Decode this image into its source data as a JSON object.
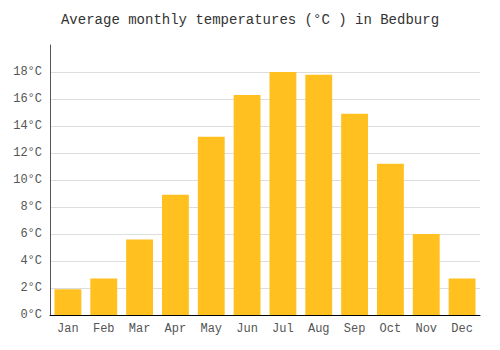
{
  "chart_data": {
    "type": "bar",
    "title": "Average monthly temperatures (°C ) in Bedburg",
    "categories": [
      "Jan",
      "Feb",
      "Mar",
      "Apr",
      "May",
      "Jun",
      "Jul",
      "Aug",
      "Sep",
      "Oct",
      "Nov",
      "Dec"
    ],
    "values": [
      1.9,
      2.7,
      5.6,
      8.9,
      13.2,
      16.3,
      18.0,
      17.8,
      14.9,
      11.2,
      6.0,
      2.7
    ],
    "color": "#FFC020",
    "ylim": [
      0,
      20
    ],
    "yticks": [
      {
        "value": 0,
        "label": "0°C"
      },
      {
        "value": 2,
        "label": "2°C"
      },
      {
        "value": 4,
        "label": "4°C"
      },
      {
        "value": 6,
        "label": "6°C"
      },
      {
        "value": 8,
        "label": "8°C"
      },
      {
        "value": 10,
        "label": "10°C"
      },
      {
        "value": 12,
        "label": "12°C"
      },
      {
        "value": 14,
        "label": "14°C"
      },
      {
        "value": 16,
        "label": "16°C"
      },
      {
        "value": 18,
        "label": "18°C"
      }
    ],
    "grid": true
  }
}
